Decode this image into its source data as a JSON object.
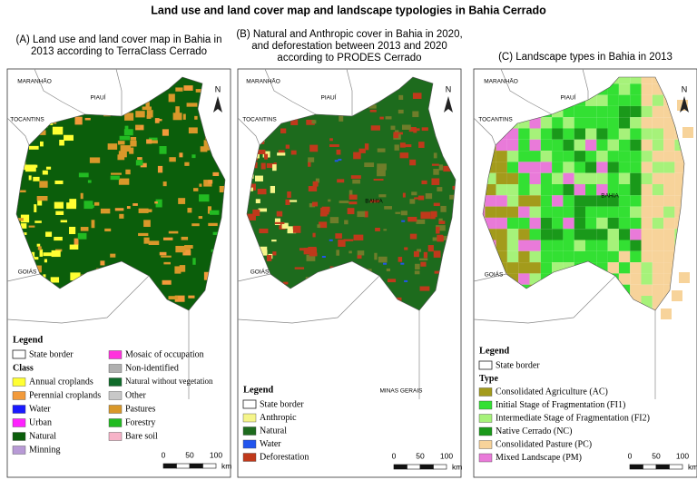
{
  "title": "Land use and land cover map and landscape typologies in Bahia Cerrado",
  "panels": [
    {
      "title_lines": [
        "(A) Land use and land cover map in Bahia in",
        "2013 according to TerraClass Cerrado"
      ],
      "places": [
        "MARANHÃO",
        "PIAUÍ",
        "TOCANTINS",
        "GOIÁS"
      ],
      "north": "N",
      "legend": {
        "title": "Legend",
        "border": "State border",
        "group": "Class",
        "items": [
          {
            "label": "Annual croplands",
            "color": "#ffff33"
          },
          {
            "label": "Perennial croplands",
            "color": "#f29a3a"
          },
          {
            "label": "Water",
            "color": "#1a1aff"
          },
          {
            "label": "Urban",
            "color": "#ff22ff"
          },
          {
            "label": "Natural",
            "color": "#0b5e0b"
          },
          {
            "label": "Minning",
            "color": "#b89ad6"
          },
          {
            "label": "Mosaic of occupation",
            "color": "#ff33dd"
          },
          {
            "label": "Non-identified",
            "color": "#b0b0b0"
          },
          {
            "label": "Natural without vegetation",
            "color": "#0f6b2a"
          },
          {
            "label": "Other",
            "color": "#c8c8c8"
          },
          {
            "label": "Pastures",
            "color": "#d9982a"
          },
          {
            "label": "Forestry",
            "color": "#22bb22"
          },
          {
            "label": "Bare soil",
            "color": "#f7b3c8"
          }
        ]
      },
      "scale": {
        "ticks": [
          0,
          50,
          100
        ],
        "unit": "km"
      }
    },
    {
      "title_lines": [
        "(B) Natural and Anthropic cover in Bahia in 2020,",
        "and deforestation between 2013 and 2020",
        "according to PRODES Cerrado"
      ],
      "places": [
        "MARANHÃO",
        "PIAUÍ",
        "TOCANTINS",
        "BAHIA",
        "GOIÁS",
        "MINAS GERAIS"
      ],
      "north": "N",
      "legend": {
        "title": "Legend",
        "border": "State border",
        "items": [
          {
            "label": "Anthropic",
            "color": "#f5f58a"
          },
          {
            "label": "Natural",
            "color": "#1d6b1d"
          },
          {
            "label": "Water",
            "color": "#2255ee"
          },
          {
            "label": "Deforestation",
            "color": "#c0391b"
          }
        ]
      },
      "scale": {
        "ticks": [
          0,
          50,
          100
        ],
        "unit": "km"
      }
    },
    {
      "title_lines": [
        "(C) Landscape types in Bahia in 2013"
      ],
      "places": [
        "MARANHÃO",
        "PIAUÍ",
        "TOCANTINS",
        "BAHIA",
        "GOIÁS"
      ],
      "north": "N",
      "legend": {
        "title": "Legend",
        "border": "State border",
        "group": "Type",
        "items": [
          {
            "label": "Consolidated Agriculture (AC)",
            "color": "#a39b1b"
          },
          {
            "label": "Initial Stage of Fragmentation (FI1)",
            "color": "#33e033"
          },
          {
            "label": "Intermediate Stage of Fragmentation (FI2)",
            "color": "#a6f27a"
          },
          {
            "label": "Native Cerrado (NC)",
            "color": "#1a991a"
          },
          {
            "label": "Consolidated Pasture (PC)",
            "color": "#f7d39a"
          },
          {
            "label": "Mixed Landscape (PM)",
            "color": "#e97ad9"
          }
        ]
      },
      "scale": {
        "ticks": [
          0,
          50,
          100
        ],
        "unit": "km"
      }
    }
  ]
}
